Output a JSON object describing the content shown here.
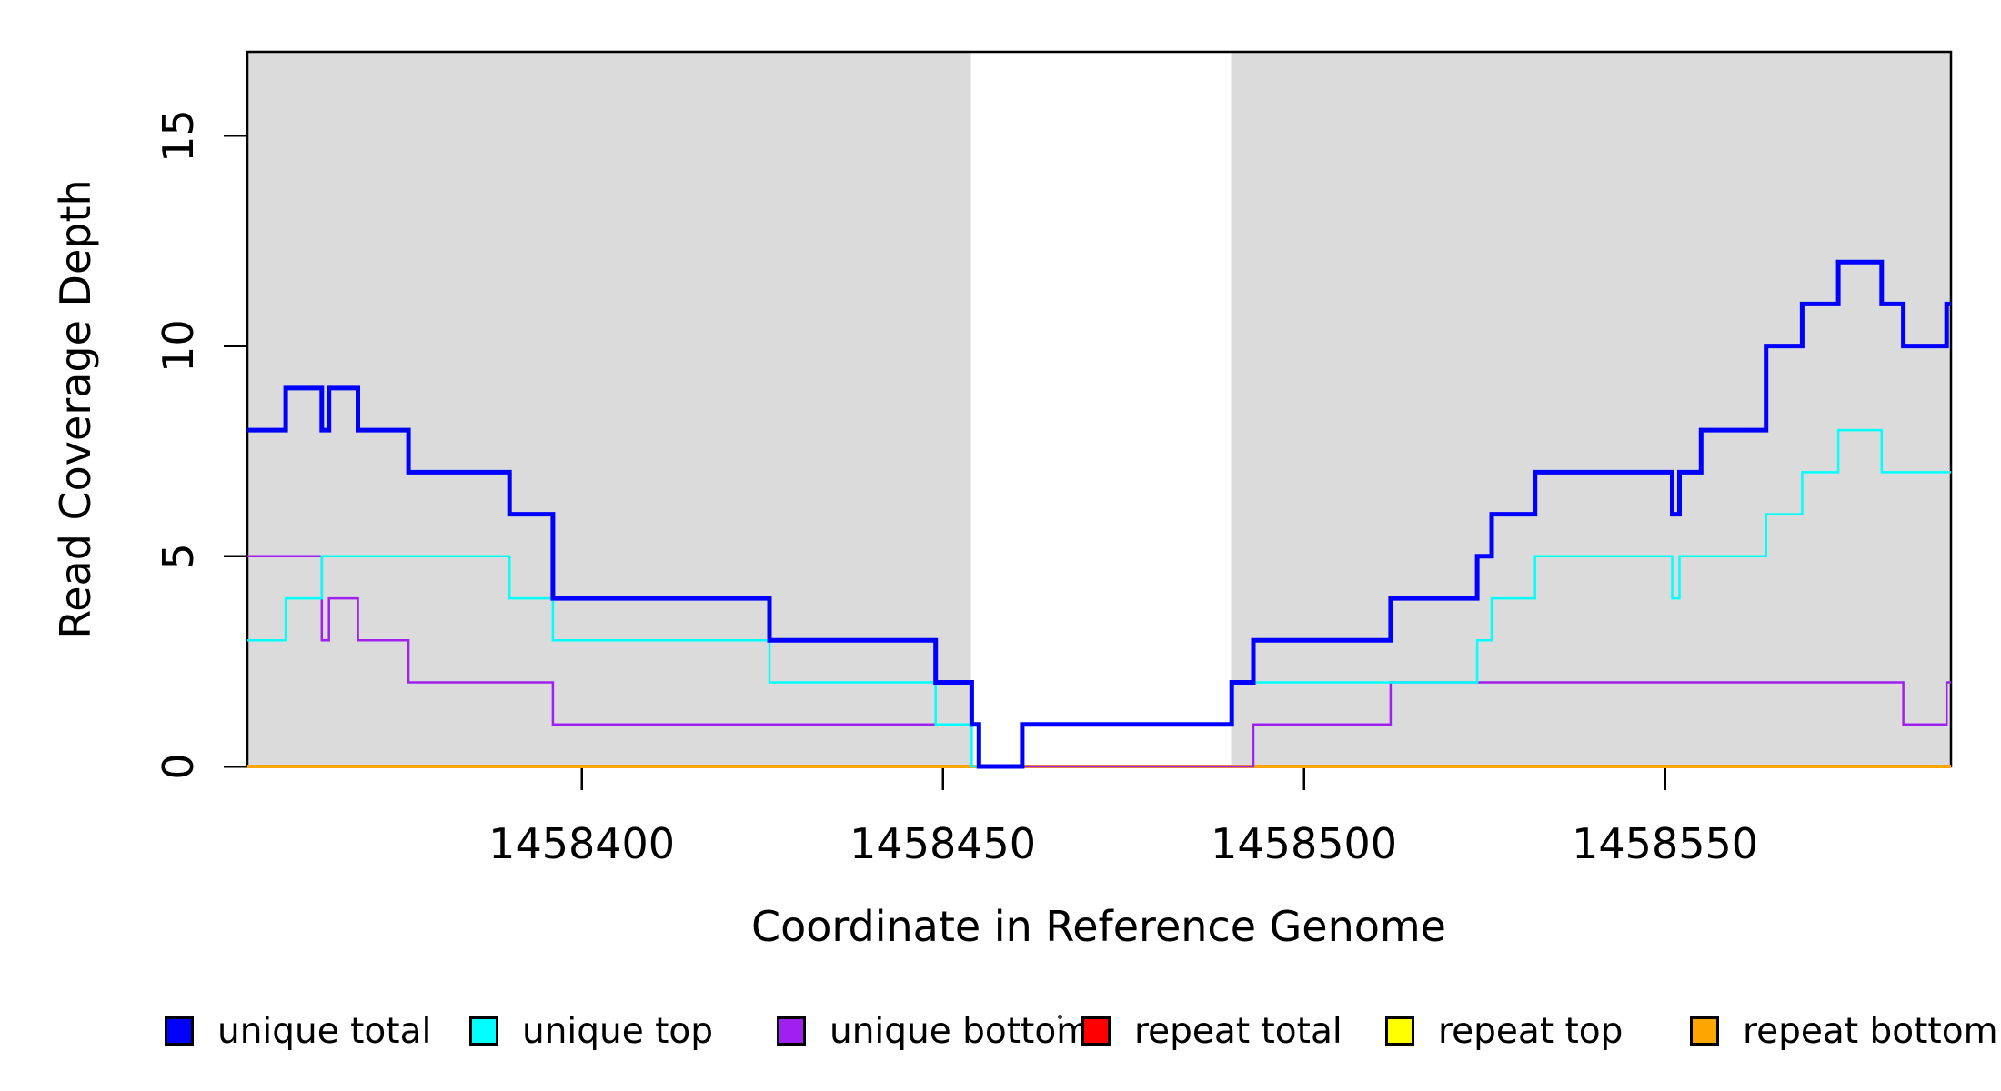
{
  "chart_data": {
    "type": "line",
    "step": true,
    "title": "",
    "xlabel": "Coordinate in Reference Genome",
    "ylabel": "Read Coverage Depth",
    "xlim": [
      1458353.7,
      1458589.6
    ],
    "ylim": [
      0,
      17
    ],
    "xticks": [
      1458400,
      1458450,
      1458500,
      1458550
    ],
    "yticks": [
      0,
      5,
      10,
      15
    ],
    "shaded_x_ranges": [
      [
        1458353.7,
        1458453.9
      ],
      [
        1458489.9,
        1458589.6
      ]
    ],
    "colors": {
      "shaded_region": "#DBDBDB",
      "axis": "#000000",
      "background": "#FFFFFF"
    },
    "series": [
      {
        "name": "unique total",
        "color": "#0000FF",
        "width": 5,
        "points": [
          [
            1458353.7,
            8
          ],
          [
            1458359,
            9
          ],
          [
            1458364,
            8
          ],
          [
            1458365,
            9
          ],
          [
            1458369,
            8
          ],
          [
            1458376,
            7
          ],
          [
            1458390,
            6
          ],
          [
            1458396,
            4
          ],
          [
            1458426,
            3
          ],
          [
            1458449,
            2
          ],
          [
            1458454,
            1
          ],
          [
            1458455,
            0
          ],
          [
            1458461,
            1
          ],
          [
            1458490,
            2
          ],
          [
            1458493,
            3
          ],
          [
            1458512,
            4
          ],
          [
            1458524,
            5
          ],
          [
            1458526,
            6
          ],
          [
            1458532,
            7
          ],
          [
            1458551,
            6
          ],
          [
            1458552,
            7
          ],
          [
            1458555,
            8
          ],
          [
            1458564,
            10
          ],
          [
            1458569,
            11
          ],
          [
            1458574,
            12
          ],
          [
            1458580,
            11
          ],
          [
            1458583,
            10
          ],
          [
            1458589,
            11
          ]
        ]
      },
      {
        "name": "unique top",
        "color": "#00FFFF",
        "width": 2.5,
        "points": [
          [
            1458353.7,
            3
          ],
          [
            1458359,
            4
          ],
          [
            1458364,
            5
          ],
          [
            1458390,
            4
          ],
          [
            1458396,
            3
          ],
          [
            1458426,
            2
          ],
          [
            1458449,
            1
          ],
          [
            1458454,
            0
          ],
          [
            1458461,
            1
          ],
          [
            1458490,
            2
          ],
          [
            1458524,
            3
          ],
          [
            1458526,
            4
          ],
          [
            1458532,
            5
          ],
          [
            1458551,
            4
          ],
          [
            1458552,
            5
          ],
          [
            1458564,
            6
          ],
          [
            1458569,
            7
          ],
          [
            1458574,
            8
          ],
          [
            1458580,
            7
          ]
        ]
      },
      {
        "name": "unique bottom",
        "color": "#A020F0",
        "width": 2.5,
        "points": [
          [
            1458353.7,
            5
          ],
          [
            1458364,
            3
          ],
          [
            1458365,
            4
          ],
          [
            1458369,
            3
          ],
          [
            1458376,
            2
          ],
          [
            1458396,
            1
          ],
          [
            1458455,
            0
          ],
          [
            1458493,
            1
          ],
          [
            1458512,
            2
          ],
          [
            1458583,
            1
          ],
          [
            1458589,
            2
          ]
        ]
      },
      {
        "name": "repeat total",
        "color": "#FF0000",
        "width": 3,
        "points": [
          [
            1458353.7,
            0
          ]
        ]
      },
      {
        "name": "repeat top",
        "color": "#FFFF00",
        "width": 2.5,
        "points": [
          [
            1458353.7,
            0
          ]
        ]
      },
      {
        "name": "repeat bottom",
        "color": "#FFA500",
        "width": 4,
        "points": [
          [
            1458353.7,
            0
          ]
        ]
      }
    ]
  },
  "legend": {
    "items": [
      {
        "label": "unique total",
        "color": "#0000FF"
      },
      {
        "label": "unique top",
        "color": "#00FFFF"
      },
      {
        "label": "unique bottom",
        "color": "#A020F0"
      },
      {
        "label": "repeat total",
        "color": "#FF0000"
      },
      {
        "label": "repeat top",
        "color": "#FFFF00"
      },
      {
        "label": "repeat bottom",
        "color": "#FFA500"
      }
    ]
  }
}
